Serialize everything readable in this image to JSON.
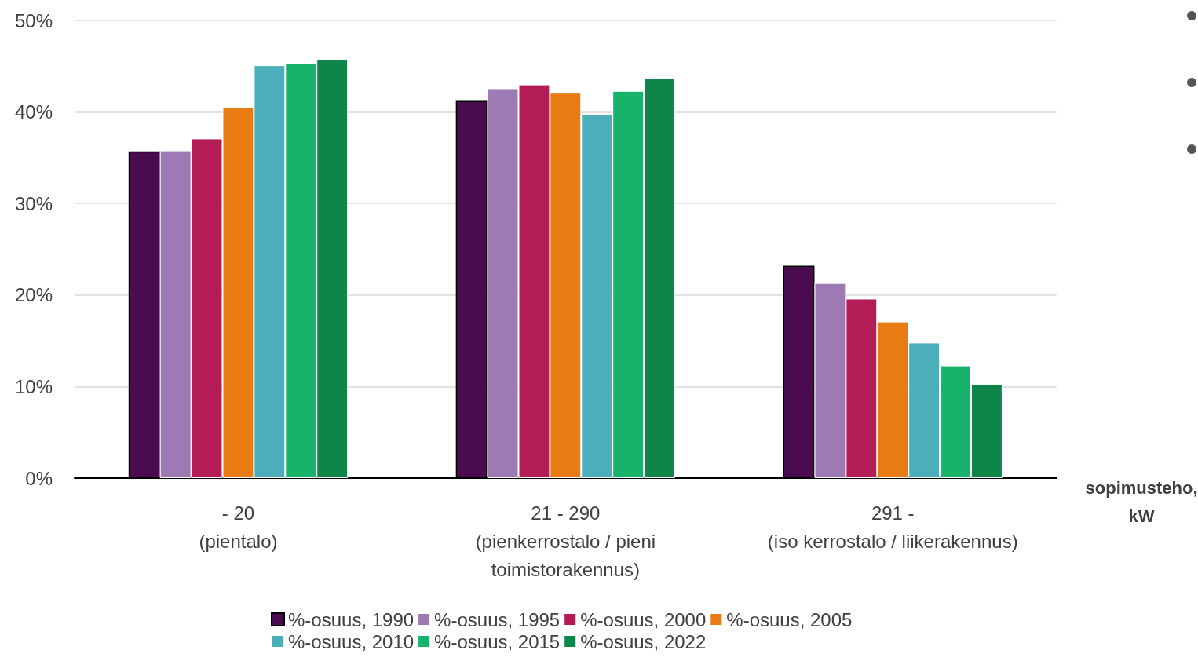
{
  "chart_data": {
    "type": "bar",
    "xlabel": "sopimusteho,\nkW",
    "categories": [
      "- 20\n(pientalo)",
      "21 - 290\n(pienkerrostalo / pieni\ntoimistorakennus)",
      "291 -\n(iso kerrostalo / liikerakennus)"
    ],
    "series": [
      {
        "name": "%-osuus, 1990",
        "color": "#4a0c4f",
        "values": [
          35.7,
          41.2,
          23.2
        ]
      },
      {
        "name": "%-osuus, 1995",
        "color": "#9e7ab4",
        "values": [
          35.8,
          42.5,
          21.3
        ]
      },
      {
        "name": "%-osuus, 2000",
        "color": "#b41c55",
        "values": [
          37.1,
          43.0,
          19.6
        ]
      },
      {
        "name": "%-osuus, 2005",
        "color": "#e87b14",
        "values": [
          40.5,
          42.1,
          17.1
        ]
      },
      {
        "name": "%-osuus, 2010",
        "color": "#4daebb",
        "values": [
          45.1,
          39.8,
          14.8
        ]
      },
      {
        "name": "%-osuus, 2015",
        "color": "#17b36a",
        "values": [
          45.3,
          42.3,
          12.3
        ]
      },
      {
        "name": "%-osuus, 2022",
        "color": "#0e8549",
        "values": [
          45.8,
          43.7,
          10.3
        ]
      }
    ],
    "ylim": [
      0,
      50
    ],
    "yticks": [
      {
        "value": 0,
        "label": "0%"
      },
      {
        "value": 10,
        "label": "10%"
      },
      {
        "value": 20,
        "label": "20%"
      },
      {
        "value": 30,
        "label": "30%"
      },
      {
        "value": 40,
        "label": "40%"
      },
      {
        "value": 50,
        "label": "50%"
      }
    ],
    "grid": "y",
    "legend": "bottom"
  }
}
